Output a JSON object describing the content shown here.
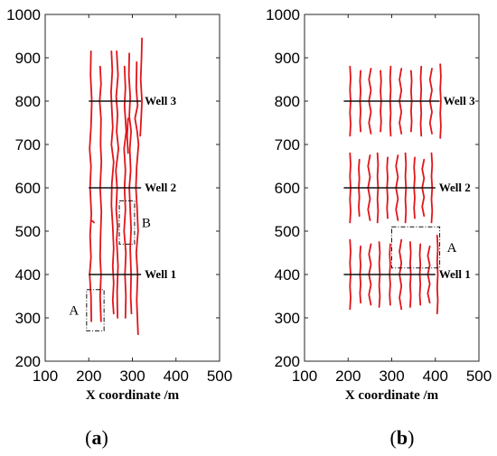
{
  "chart_data": [
    {
      "type": "line",
      "panel_label": {
        "open": "(",
        "letter": "a",
        "close": ")"
      },
      "xlabel": "X coordinate /m",
      "ylabel": "",
      "xlim": [
        100,
        500
      ],
      "ylim": [
        200,
        1000
      ],
      "xticks": [
        100,
        200,
        300,
        400,
        500
      ],
      "yticks": [
        200,
        300,
        400,
        500,
        600,
        700,
        800,
        900,
        1000
      ],
      "grid": false,
      "fracture_color": "#e0151b",
      "wells": [
        {
          "name": "Well 3",
          "y": 800,
          "x": [
            200,
            320
          ]
        },
        {
          "name": "Well 2",
          "y": 600,
          "x": [
            200,
            320
          ]
        },
        {
          "name": "Well 1",
          "y": 400,
          "x": [
            200,
            320
          ]
        }
      ],
      "boxes": [
        {
          "label": "A",
          "x": [
            195,
            235
          ],
          "y": [
            270,
            365
          ]
        },
        {
          "label": "B",
          "x": [
            270,
            305
          ],
          "y": [
            470,
            570
          ]
        }
      ],
      "series": [
        {
          "points": [
            [
              205,
              915
            ],
            [
              204,
              860
            ],
            [
              207,
              800
            ],
            [
              205,
              740
            ],
            [
              202,
              690
            ],
            [
              205,
              650
            ],
            [
              203,
              600
            ],
            [
              206,
              540
            ],
            [
              203,
              490
            ],
            [
              205,
              440
            ],
            [
              202,
              400
            ],
            [
              205,
              350
            ],
            [
              206,
              292
            ]
          ]
        },
        {
          "points": [
            [
              226,
              880
            ],
            [
              228,
              840
            ],
            [
              225,
              800
            ],
            [
              228,
              760
            ],
            [
              227,
              700
            ],
            [
              229,
              660
            ],
            [
              226,
              600
            ],
            [
              229,
              545
            ],
            [
              227,
              490
            ],
            [
              226,
              440
            ],
            [
              228,
              400
            ],
            [
              226,
              350
            ],
            [
              228,
              292
            ]
          ]
        },
        {
          "points": [
            [
              252,
              915
            ],
            [
              254,
              870
            ],
            [
              251,
              820
            ],
            [
              253,
              780
            ],
            [
              255,
              740
            ],
            [
              252,
              700
            ],
            [
              257,
              660
            ],
            [
              253,
              610
            ],
            [
              252,
              560
            ],
            [
              255,
              510
            ],
            [
              257,
              460
            ],
            [
              255,
              420
            ],
            [
              257,
              380
            ],
            [
              255,
              340
            ],
            [
              257,
              310
            ]
          ]
        },
        {
          "points": [
            [
              264,
              915
            ],
            [
              267,
              860
            ],
            [
              263,
              810
            ],
            [
              266,
              770
            ],
            [
              264,
              730
            ],
            [
              268,
              690
            ],
            [
              262,
              640
            ],
            [
              265,
              600
            ],
            [
              263,
              550
            ],
            [
              266,
              510
            ],
            [
              264,
              480
            ],
            [
              267,
              420
            ],
            [
              265,
              360
            ],
            [
              266,
              300
            ]
          ]
        },
        {
          "points": [
            [
              282,
              880
            ],
            [
              284,
              830
            ],
            [
              282,
              790
            ],
            [
              286,
              730
            ],
            [
              281,
              690
            ],
            [
              284,
              640
            ],
            [
              282,
              600
            ],
            [
              284,
              550
            ],
            [
              281,
              500
            ],
            [
              285,
              450
            ],
            [
              283,
              400
            ],
            [
              285,
              350
            ],
            [
              284,
              300
            ]
          ]
        },
        {
          "points": [
            [
              293,
              910
            ],
            [
              292,
              860
            ],
            [
              295,
              810
            ],
            [
              293,
              765
            ],
            [
              297,
              730
            ],
            [
              294,
              690
            ],
            [
              296,
              640
            ],
            [
              293,
              600
            ],
            [
              295,
              550
            ],
            [
              297,
              505
            ],
            [
              295,
              460
            ],
            [
              297,
              400
            ],
            [
              296,
              350
            ],
            [
              298,
              310
            ]
          ]
        },
        {
          "points": [
            [
              310,
              890
            ],
            [
              309,
              830
            ],
            [
              312,
              790
            ],
            [
              306,
              760
            ],
            [
              311,
              730
            ],
            [
              314,
              700
            ],
            [
              310,
              650
            ],
            [
              308,
              600
            ],
            [
              311,
              550
            ],
            [
              313,
              500
            ],
            [
              309,
              450
            ],
            [
              312,
              400
            ],
            [
              310,
              340
            ],
            [
              313,
              262
            ]
          ]
        },
        {
          "points": [
            [
              322,
              945
            ],
            [
              321,
              900
            ],
            [
              319,
              850
            ],
            [
              322,
              800
            ],
            [
              320,
              760
            ],
            [
              318,
              720
            ]
          ]
        },
        {
          "points": [
            [
              290,
              760
            ],
            [
              288,
              720
            ],
            [
              290,
              680
            ]
          ]
        },
        {
          "points": [
            [
              205,
              525
            ],
            [
              210,
              522
            ],
            [
              212,
              520
            ]
          ]
        }
      ]
    },
    {
      "type": "line",
      "panel_label": {
        "open": "(",
        "letter": "b",
        "close": ")"
      },
      "xlabel": "X coordinate /m",
      "ylabel": "",
      "xlim": [
        100,
        500
      ],
      "ylim": [
        200,
        1000
      ],
      "xticks": [
        100,
        200,
        300,
        400,
        500
      ],
      "yticks": [
        200,
        300,
        400,
        500,
        600,
        700,
        800,
        900,
        1000
      ],
      "grid": false,
      "fracture_color": "#e0151b",
      "wells": [
        {
          "name": "Well 3",
          "y": 800,
          "x": [
            190,
            410
          ]
        },
        {
          "name": "Well 2",
          "y": 600,
          "x": [
            190,
            400
          ]
        },
        {
          "name": "Well 1",
          "y": 400,
          "x": [
            190,
            400
          ]
        }
      ],
      "boxes": [
        {
          "label": "A",
          "x": [
            300,
            410
          ],
          "y": [
            415,
            510
          ]
        }
      ],
      "fracture_groups": [
        {
          "y_center": 800,
          "xs": [
            205,
            228,
            250,
            275,
            297,
            320,
            345,
            367,
            390,
            412
          ],
          "halfspans": [
            80,
            70,
            75,
            70,
            80,
            75,
            70,
            80,
            75,
            85
          ]
        },
        {
          "y_center": 600,
          "xs": [
            205,
            225,
            248,
            268,
            290,
            312,
            332,
            352,
            372,
            392
          ],
          "halfspans": [
            80,
            65,
            75,
            80,
            70,
            75,
            80,
            70,
            65,
            80
          ]
        },
        {
          "y_center": 400,
          "xs": [
            205,
            228,
            250,
            272,
            296,
            320,
            343,
            365,
            385,
            405
          ],
          "halfspans": [
            80,
            65,
            70,
            75,
            70,
            80,
            75,
            70,
            65,
            90
          ]
        }
      ]
    }
  ]
}
